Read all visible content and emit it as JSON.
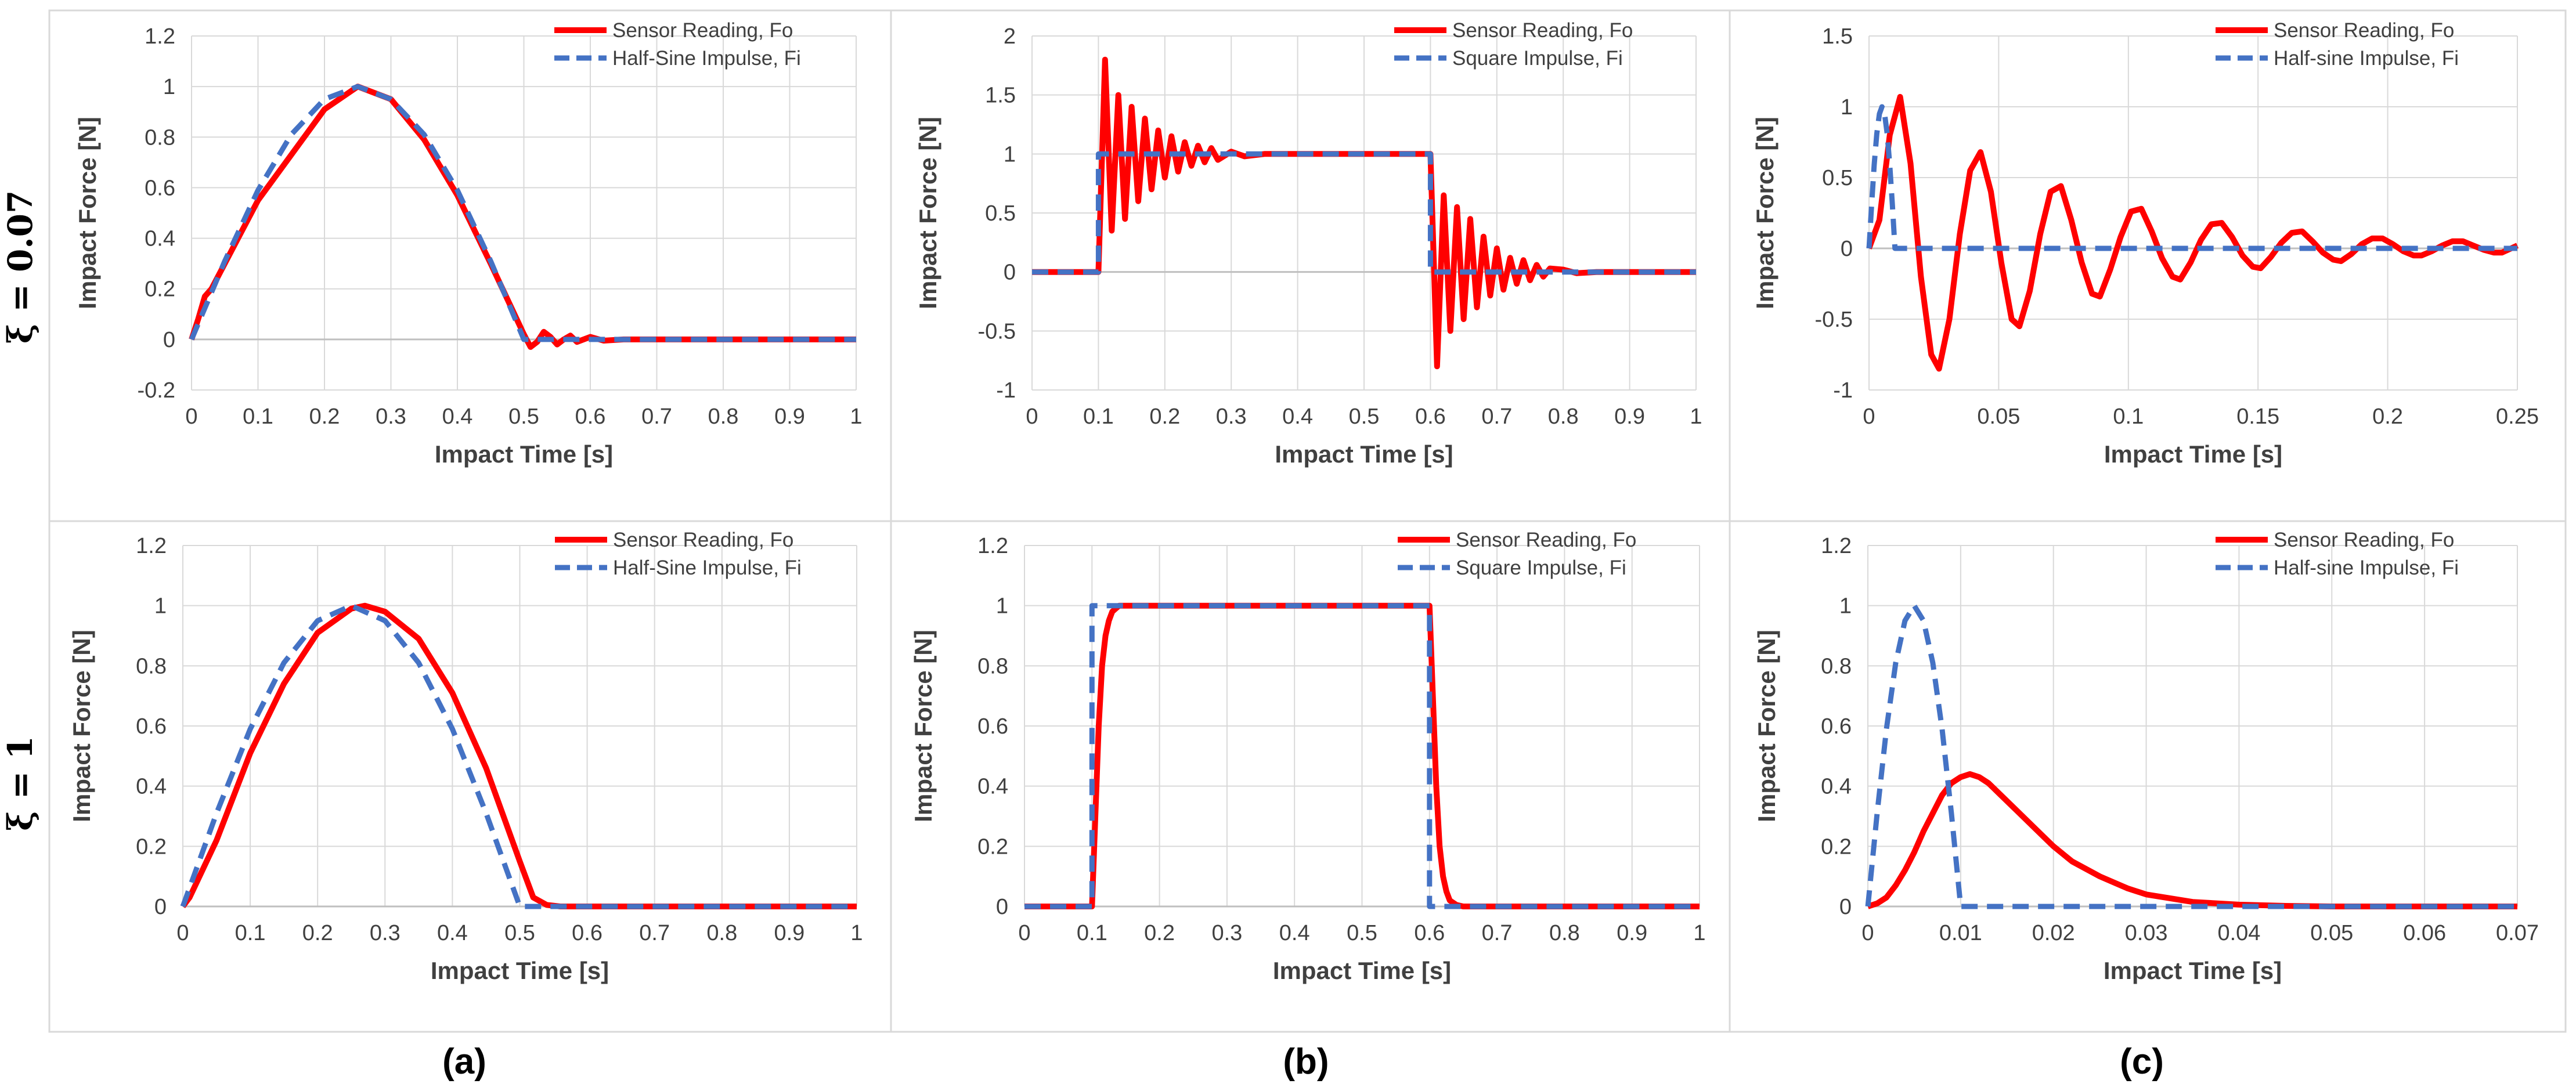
{
  "colors": {
    "sensor": "#ff0000",
    "impulse": "#4472c4",
    "grid": "#d9d9d9",
    "axis": "#bfbfbf",
    "panel_border": "#d9d9d9",
    "text": "#404040"
  },
  "row_labels": [
    "ξ = 0.07",
    "ξ = 1"
  ],
  "panel_labels": [
    "(a)",
    "(b)",
    "(c)"
  ],
  "chart_data": [
    {
      "id": "a1",
      "type": "line",
      "xlabel": "Impact Time [s]",
      "ylabel": "Impact Force [N]",
      "xlim": [
        0,
        1
      ],
      "ylim": [
        -0.2,
        1.2
      ],
      "xticks": [
        0,
        0.1,
        0.2,
        0.3,
        0.4,
        0.5,
        0.6,
        0.7,
        0.8,
        0.9,
        1
      ],
      "yticks": [
        -0.2,
        0,
        0.2,
        0.4,
        0.6,
        0.8,
        1,
        1.2
      ],
      "xtick_labels": [
        "0",
        "0.1",
        "0.2",
        "0.3",
        "0.4",
        "0.5",
        "0.6",
        "0.7",
        "0.8",
        "0.9",
        "1"
      ],
      "ytick_labels": [
        "-0.2",
        "0",
        "0.2",
        "0.4",
        "0.6",
        "0.8",
        "1",
        "1.2"
      ],
      "series": [
        {
          "name": "Sensor Reading, Fo",
          "style": "solid",
          "x": [
            0,
            0.01,
            0.02,
            0.03,
            0.05,
            0.07,
            0.1,
            0.15,
            0.2,
            0.25,
            0.3,
            0.35,
            0.4,
            0.45,
            0.5,
            0.51,
            0.52,
            0.53,
            0.54,
            0.55,
            0.56,
            0.57,
            0.58,
            0.6,
            0.62,
            0.65,
            0.7,
            1.0
          ],
          "y": [
            0,
            0.08,
            0.17,
            0.2,
            0.3,
            0.4,
            0.55,
            0.73,
            0.91,
            1.0,
            0.95,
            0.79,
            0.57,
            0.3,
            0.02,
            -0.03,
            -0.01,
            0.03,
            0.01,
            -0.02,
            0.0,
            0.015,
            -0.01,
            0.01,
            -0.005,
            0.0,
            0.0,
            0.0
          ]
        },
        {
          "name": "Half-Sine Impulse, Fi",
          "style": "dashed",
          "x": [
            0,
            0.05,
            0.1,
            0.15,
            0.2,
            0.25,
            0.3,
            0.35,
            0.4,
            0.45,
            0.5,
            0.6,
            0.7,
            0.8,
            0.9,
            1.0
          ],
          "y": [
            0,
            0.31,
            0.59,
            0.81,
            0.95,
            1.0,
            0.95,
            0.81,
            0.59,
            0.31,
            0,
            0,
            0,
            0,
            0,
            0
          ]
        }
      ]
    },
    {
      "id": "b1",
      "type": "line",
      "xlabel": "Impact Time [s]",
      "ylabel": "Impact Force [N]",
      "xlim": [
        0,
        1
      ],
      "ylim": [
        -1,
        2
      ],
      "xticks": [
        0,
        0.1,
        0.2,
        0.3,
        0.4,
        0.5,
        0.6,
        0.7,
        0.8,
        0.9,
        1
      ],
      "yticks": [
        -1,
        -0.5,
        0,
        0.5,
        1,
        1.5,
        2
      ],
      "xtick_labels": [
        "0",
        "0.1",
        "0.2",
        "0.3",
        "0.4",
        "0.5",
        "0.6",
        "0.7",
        "0.8",
        "0.9",
        "1"
      ],
      "ytick_labels": [
        "-1",
        "-0.5",
        "0",
        "0.5",
        "1",
        "1.5",
        "2"
      ],
      "series": [
        {
          "name": "Sensor Reading, Fo",
          "style": "solid",
          "x": [
            0,
            0.1,
            0.11,
            0.12,
            0.13,
            0.14,
            0.15,
            0.16,
            0.17,
            0.18,
            0.19,
            0.2,
            0.21,
            0.22,
            0.23,
            0.24,
            0.25,
            0.26,
            0.27,
            0.28,
            0.3,
            0.32,
            0.35,
            0.6,
            0.61,
            0.62,
            0.63,
            0.64,
            0.65,
            0.66,
            0.67,
            0.68,
            0.69,
            0.7,
            0.71,
            0.72,
            0.73,
            0.74,
            0.75,
            0.76,
            0.77,
            0.78,
            0.8,
            0.82,
            0.85,
            1.0
          ],
          "y": [
            0,
            0,
            1.8,
            0.35,
            1.5,
            0.45,
            1.4,
            0.6,
            1.3,
            0.7,
            1.2,
            0.8,
            1.15,
            0.85,
            1.1,
            0.9,
            1.07,
            0.93,
            1.05,
            0.95,
            1.02,
            0.98,
            1.0,
            1.0,
            -0.8,
            0.65,
            -0.5,
            0.55,
            -0.4,
            0.45,
            -0.3,
            0.3,
            -0.2,
            0.2,
            -0.15,
            0.12,
            -0.1,
            0.1,
            -0.07,
            0.06,
            -0.04,
            0.03,
            0.02,
            -0.01,
            0.0,
            0.0
          ]
        },
        {
          "name": "Square Impulse, Fi",
          "style": "dashed",
          "x": [
            0,
            0.1,
            0.1,
            0.6,
            0.6,
            1.0
          ],
          "y": [
            0,
            0,
            1,
            1,
            0,
            0
          ]
        }
      ]
    },
    {
      "id": "c1",
      "type": "line",
      "xlabel": "Impact Time [s]",
      "ylabel": "Impact Force [N]",
      "xlim": [
        0,
        0.25
      ],
      "ylim": [
        -1,
        1.5
      ],
      "xticks": [
        0,
        0.05,
        0.1,
        0.15,
        0.2,
        0.25
      ],
      "yticks": [
        -1,
        -0.5,
        0,
        0.5,
        1,
        1.5
      ],
      "xtick_labels": [
        "0",
        "0.05",
        "0.1",
        "0.15",
        "0.2",
        "0.25"
      ],
      "ytick_labels": [
        "-1",
        "-0.5",
        "0",
        "0.5",
        "1",
        "1.5"
      ],
      "series": [
        {
          "name": "Sensor Reading, Fo",
          "style": "solid",
          "x": [
            0,
            0.004,
            0.008,
            0.012,
            0.016,
            0.02,
            0.024,
            0.027,
            0.031,
            0.035,
            0.039,
            0.043,
            0.047,
            0.051,
            0.055,
            0.058,
            0.062,
            0.066,
            0.07,
            0.074,
            0.078,
            0.082,
            0.086,
            0.089,
            0.093,
            0.097,
            0.101,
            0.105,
            0.109,
            0.113,
            0.117,
            0.12,
            0.124,
            0.128,
            0.132,
            0.136,
            0.14,
            0.144,
            0.148,
            0.151,
            0.155,
            0.159,
            0.163,
            0.167,
            0.171,
            0.175,
            0.179,
            0.182,
            0.186,
            0.19,
            0.194,
            0.198,
            0.202,
            0.206,
            0.21,
            0.213,
            0.217,
            0.221,
            0.225,
            0.229,
            0.233,
            0.237,
            0.241,
            0.244,
            0.25
          ],
          "y": [
            0,
            0.2,
            0.8,
            1.07,
            0.6,
            -0.2,
            -0.75,
            -0.85,
            -0.5,
            0.1,
            0.55,
            0.68,
            0.4,
            -0.1,
            -0.5,
            -0.55,
            -0.3,
            0.1,
            0.4,
            0.44,
            0.2,
            -0.1,
            -0.32,
            -0.34,
            -0.15,
            0.08,
            0.26,
            0.28,
            0.12,
            -0.07,
            -0.2,
            -0.22,
            -0.1,
            0.06,
            0.17,
            0.18,
            0.08,
            -0.05,
            -0.13,
            -0.14,
            -0.06,
            0.04,
            0.11,
            0.12,
            0.05,
            -0.03,
            -0.08,
            -0.09,
            -0.04,
            0.03,
            0.07,
            0.07,
            0.03,
            -0.02,
            -0.05,
            -0.05,
            -0.02,
            0.02,
            0.05,
            0.05,
            0.02,
            -0.01,
            -0.03,
            -0.03,
            0.02
          ]
        },
        {
          "name": "Half-sine Impulse, Fi",
          "style": "dashed",
          "x": [
            0,
            0.001,
            0.002,
            0.003,
            0.004,
            0.005,
            0.006,
            0.007,
            0.008,
            0.009,
            0.01,
            0.25
          ],
          "y": [
            0,
            0.31,
            0.59,
            0.81,
            0.95,
            1.0,
            0.95,
            0.81,
            0.59,
            0.31,
            0,
            0
          ]
        }
      ]
    },
    {
      "id": "a2",
      "type": "line",
      "xlabel": "Impact Time [s]",
      "ylabel": "Impact Force [N]",
      "xlim": [
        0,
        1
      ],
      "ylim": [
        0,
        1.2
      ],
      "xticks": [
        0,
        0.1,
        0.2,
        0.3,
        0.4,
        0.5,
        0.6,
        0.7,
        0.8,
        0.9,
        1
      ],
      "yticks": [
        0,
        0.2,
        0.4,
        0.6,
        0.8,
        1,
        1.2
      ],
      "xtick_labels": [
        "0",
        "0.1",
        "0.2",
        "0.3",
        "0.4",
        "0.5",
        "0.6",
        "0.7",
        "0.8",
        "0.9",
        "1"
      ],
      "ytick_labels": [
        "0",
        "0.2",
        "0.4",
        "0.6",
        "0.8",
        "1",
        "1.2"
      ],
      "series": [
        {
          "name": "Sensor Reading, Fo",
          "style": "solid",
          "x": [
            0,
            0.01,
            0.05,
            0.1,
            0.15,
            0.2,
            0.25,
            0.27,
            0.3,
            0.35,
            0.4,
            0.45,
            0.5,
            0.52,
            0.54,
            0.56,
            0.6,
            1.0
          ],
          "y": [
            0,
            0.03,
            0.22,
            0.51,
            0.74,
            0.91,
            0.99,
            1.0,
            0.98,
            0.89,
            0.71,
            0.46,
            0.15,
            0.03,
            0.005,
            0,
            0,
            0
          ]
        },
        {
          "name": "Half-Sine Impulse, Fi",
          "style": "dashed",
          "x": [
            0,
            0.05,
            0.1,
            0.15,
            0.2,
            0.25,
            0.3,
            0.35,
            0.4,
            0.45,
            0.5,
            0.6,
            0.7,
            0.8,
            0.9,
            1.0
          ],
          "y": [
            0,
            0.31,
            0.59,
            0.81,
            0.95,
            1.0,
            0.95,
            0.81,
            0.59,
            0.31,
            0,
            0,
            0,
            0,
            0,
            0
          ]
        }
      ]
    },
    {
      "id": "b2",
      "type": "line",
      "xlabel": "Impact Time [s]",
      "ylabel": "Impact Force [N]",
      "xlim": [
        0,
        1
      ],
      "ylim": [
        0,
        1.2
      ],
      "xticks": [
        0,
        0.1,
        0.2,
        0.3,
        0.4,
        0.5,
        0.6,
        0.7,
        0.8,
        0.9,
        1
      ],
      "yticks": [
        0,
        0.2,
        0.4,
        0.6,
        0.8,
        1,
        1.2
      ],
      "xtick_labels": [
        "0",
        "0.1",
        "0.2",
        "0.3",
        "0.4",
        "0.5",
        "0.6",
        "0.7",
        "0.8",
        "0.9",
        "1"
      ],
      "ytick_labels": [
        "0",
        "0.2",
        "0.4",
        "0.6",
        "0.8",
        "1",
        "1.2"
      ],
      "series": [
        {
          "name": "Sensor Reading, Fo",
          "style": "solid",
          "x": [
            0,
            0.1,
            0.105,
            0.11,
            0.115,
            0.12,
            0.125,
            0.13,
            0.14,
            0.15,
            0.6,
            0.605,
            0.61,
            0.615,
            0.62,
            0.625,
            0.63,
            0.64,
            0.65,
            1.0
          ],
          "y": [
            0,
            0,
            0.3,
            0.6,
            0.8,
            0.9,
            0.95,
            0.98,
            1.0,
            1.0,
            1.0,
            0.7,
            0.4,
            0.2,
            0.1,
            0.05,
            0.02,
            0.005,
            0,
            0
          ]
        },
        {
          "name": "Square Impulse, Fi",
          "style": "dashed",
          "x": [
            0,
            0.1,
            0.1,
            0.6,
            0.6,
            1.0
          ],
          "y": [
            0,
            0,
            1,
            1,
            0,
            0
          ]
        }
      ]
    },
    {
      "id": "c2",
      "type": "line",
      "xlabel": "Impact Time [s]",
      "ylabel": "Impact Force [N]",
      "xlim": [
        0,
        0.07
      ],
      "ylim": [
        0,
        1.2
      ],
      "xticks": [
        0,
        0.01,
        0.02,
        0.03,
        0.04,
        0.05,
        0.06,
        0.07
      ],
      "yticks": [
        0,
        0.2,
        0.4,
        0.6,
        0.8,
        1,
        1.2
      ],
      "xtick_labels": [
        "0",
        "0.01",
        "0.02",
        "0.03",
        "0.04",
        "0.05",
        "0.06",
        "0.07"
      ],
      "ytick_labels": [
        "0",
        "0.2",
        "0.4",
        "0.6",
        "0.8",
        "1",
        "1.2"
      ],
      "series": [
        {
          "name": "Sensor Reading, Fo",
          "style": "solid",
          "x": [
            0,
            0.001,
            0.002,
            0.003,
            0.004,
            0.005,
            0.006,
            0.007,
            0.008,
            0.009,
            0.01,
            0.011,
            0.012,
            0.013,
            0.014,
            0.016,
            0.018,
            0.02,
            0.022,
            0.025,
            0.028,
            0.03,
            0.035,
            0.04,
            0.045,
            0.05,
            0.07
          ],
          "y": [
            0,
            0.01,
            0.03,
            0.07,
            0.12,
            0.18,
            0.25,
            0.31,
            0.37,
            0.41,
            0.43,
            0.44,
            0.43,
            0.41,
            0.38,
            0.32,
            0.26,
            0.2,
            0.15,
            0.1,
            0.06,
            0.04,
            0.015,
            0.006,
            0.002,
            0.0,
            0.0
          ]
        },
        {
          "name": "Half-sine Impulse, Fi",
          "style": "dashed",
          "x": [
            0,
            0.001,
            0.002,
            0.003,
            0.004,
            0.005,
            0.006,
            0.007,
            0.008,
            0.009,
            0.01,
            0.07
          ],
          "y": [
            0,
            0.31,
            0.59,
            0.81,
            0.95,
            1.0,
            0.95,
            0.81,
            0.59,
            0.31,
            0,
            0
          ]
        }
      ]
    }
  ]
}
